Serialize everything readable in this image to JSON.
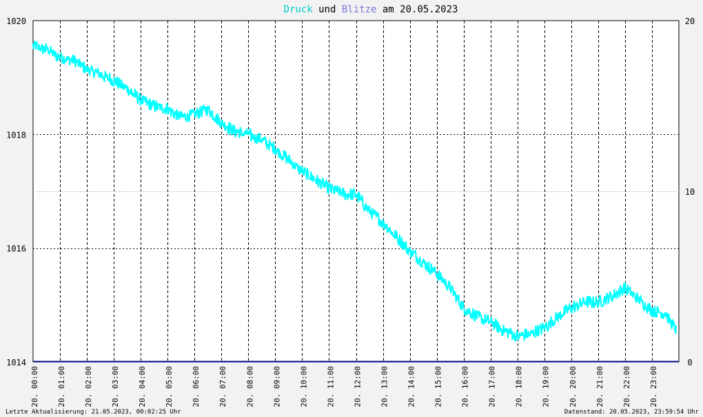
{
  "title": {
    "part1": "Druck",
    "part2": " und ",
    "part3": "Blitze",
    "part4": " am 20.05.2023"
  },
  "colors": {
    "druck": "#00ffff",
    "blitze": "#7777dd",
    "text": "#000000",
    "blitz_line": "#000080",
    "background": "#f2f2f2",
    "plot_background": "#ffffff"
  },
  "footer": {
    "left": "Letzte Aktualisierung: 21.05.2023, 00:02:25 Uhr",
    "right": "Datenstand: 20.05.2023, 23:59:54 Uhr"
  },
  "chart_data": {
    "type": "line",
    "xlim": [
      0,
      24
    ],
    "ylim_left": [
      1014,
      1020
    ],
    "ylim_right": [
      0,
      20
    ],
    "yticks_left": [
      "1014",
      "1016",
      "1018",
      "1020"
    ],
    "yticks_right": [
      "0",
      "10",
      "20"
    ],
    "grid": true,
    "xticks": [
      "20. 00:00",
      "20. 01:00",
      "20. 02:00",
      "20. 03:00",
      "20. 04:00",
      "20. 05:00",
      "20. 06:00",
      "20. 07:00",
      "20. 08:00",
      "20. 09:00",
      "20. 10:00",
      "20. 11:00",
      "20. 12:00",
      "20. 13:00",
      "20. 14:00",
      "20. 15:00",
      "20. 16:00",
      "20. 17:00",
      "20. 18:00",
      "20. 19:00",
      "20. 20:00",
      "20. 21:00",
      "20. 22:00",
      "20. 23:00"
    ],
    "series": [
      {
        "name": "Druck",
        "axis": "left",
        "x": [
          0,
          0.5,
          1,
          1.5,
          2,
          2.5,
          3,
          3.5,
          4,
          4.5,
          5,
          5.5,
          6,
          6.5,
          7,
          7.5,
          8,
          8.5,
          9,
          9.5,
          10,
          10.5,
          11,
          11.5,
          12,
          12.5,
          13,
          13.5,
          14,
          14.5,
          15,
          15.5,
          16,
          16.5,
          17,
          17.5,
          18,
          18.5,
          19,
          19.5,
          20,
          20.5,
          21,
          21.5,
          22,
          22.5,
          23,
          23.5,
          23.9
        ],
        "y": [
          1019.55,
          1019.5,
          1019.35,
          1019.3,
          1019.15,
          1019.05,
          1018.95,
          1018.8,
          1018.6,
          1018.5,
          1018.45,
          1018.3,
          1018.35,
          1018.45,
          1018.2,
          1018.05,
          1018.0,
          1017.9,
          1017.75,
          1017.55,
          1017.35,
          1017.2,
          1017.05,
          1016.95,
          1016.95,
          1016.65,
          1016.45,
          1016.2,
          1015.95,
          1015.75,
          1015.55,
          1015.3,
          1014.95,
          1014.8,
          1014.7,
          1014.55,
          1014.45,
          1014.5,
          1014.6,
          1014.8,
          1014.95,
          1015.05,
          1015.05,
          1015.15,
          1015.3,
          1015.1,
          1014.9,
          1014.85,
          1014.55
        ]
      },
      {
        "name": "Blitze",
        "axis": "right",
        "x": [
          0,
          24
        ],
        "y": [
          0,
          0
        ]
      }
    ]
  }
}
